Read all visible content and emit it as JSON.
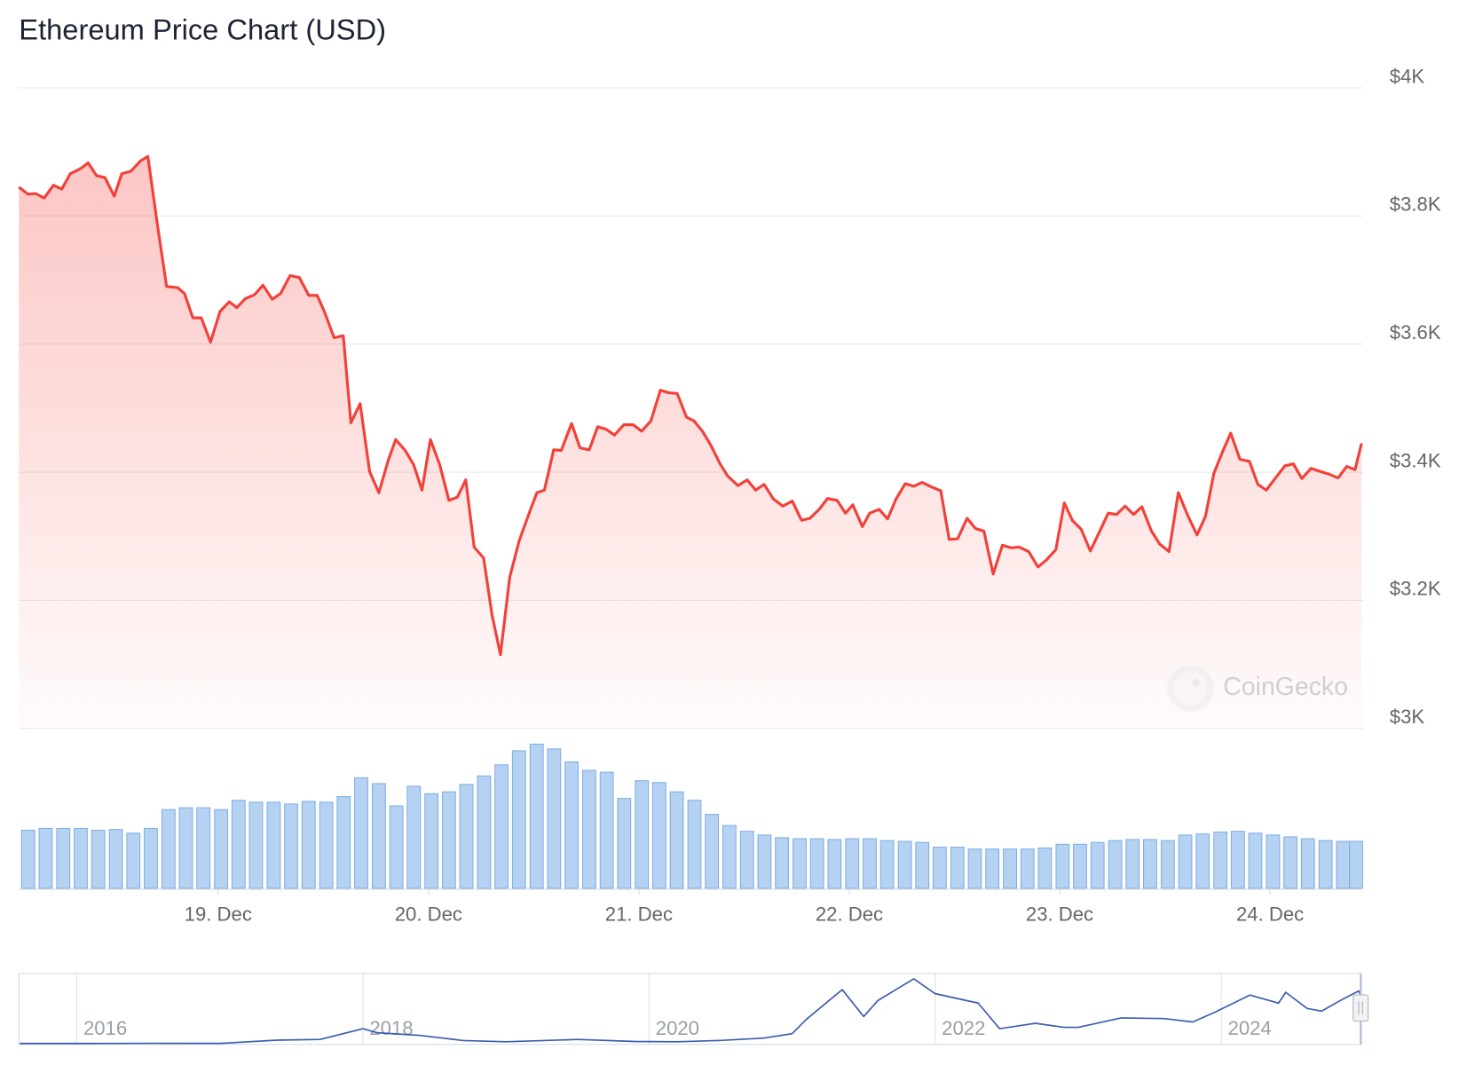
{
  "chart_data": {
    "type": "area",
    "title": "Ethereum Price Chart (USD)",
    "watermark": "CoinGecko",
    "color": "#f2413a",
    "grid": true,
    "xlim": [
      18.053,
      24.435
    ],
    "ylim": [
      3000,
      4000
    ],
    "yticks": [
      {
        "value": 3000,
        "label": "$3K"
      },
      {
        "value": 3200,
        "label": "$3.2K"
      },
      {
        "value": 3400,
        "label": "$3.4K"
      },
      {
        "value": 3600,
        "label": "$3.6K"
      },
      {
        "value": 3800,
        "label": "$3.8K"
      },
      {
        "value": 4000,
        "label": "$4K"
      }
    ],
    "xticks": [
      {
        "value": 19,
        "label": "19. Dec"
      },
      {
        "value": 20,
        "label": "20. Dec"
      },
      {
        "value": 21,
        "label": "21. Dec"
      },
      {
        "value": 22,
        "label": "22. Dec"
      },
      {
        "value": 23,
        "label": "23. Dec"
      },
      {
        "value": 24,
        "label": "24. Dec"
      }
    ],
    "x": [
      18.053,
      18.097,
      18.133,
      18.173,
      18.217,
      18.257,
      18.297,
      18.346,
      18.382,
      18.422,
      18.462,
      18.506,
      18.542,
      18.586,
      18.631,
      18.666,
      18.711,
      18.755,
      18.808,
      18.84,
      18.88,
      18.92,
      18.964,
      19.009,
      19.053,
      19.089,
      19.129,
      19.173,
      19.213,
      19.257,
      19.297,
      19.342,
      19.386,
      19.431,
      19.471,
      19.506,
      19.551,
      19.595,
      19.631,
      19.675,
      19.72,
      19.764,
      19.809,
      19.844,
      19.889,
      19.929,
      19.969,
      20.009,
      20.053,
      20.097,
      20.137,
      20.177,
      20.217,
      20.262,
      20.302,
      20.342,
      20.386,
      20.431,
      20.475,
      20.515,
      20.551,
      20.595,
      20.631,
      20.68,
      20.72,
      20.764,
      20.804,
      20.844,
      20.884,
      20.928,
      20.973,
      21.013,
      21.057,
      21.102,
      21.142,
      21.182,
      21.226,
      21.262,
      21.302,
      21.342,
      21.386,
      21.422,
      21.471,
      21.515,
      21.555,
      21.595,
      21.64,
      21.684,
      21.729,
      21.773,
      21.813,
      21.857,
      21.897,
      21.942,
      21.982,
      22.017,
      22.062,
      22.097,
      22.142,
      22.182,
      22.222,
      22.266,
      22.306,
      22.346,
      22.391,
      22.435,
      22.475,
      22.515,
      22.56,
      22.6,
      22.64,
      22.684,
      22.728,
      22.768,
      22.808,
      22.853,
      22.897,
      22.937,
      22.982,
      23.022,
      23.062,
      23.102,
      23.146,
      23.182,
      23.231,
      23.271,
      23.311,
      23.351,
      23.391,
      23.435,
      23.475,
      23.52,
      23.564,
      23.608,
      23.653,
      23.693,
      23.733,
      23.773,
      23.813,
      23.857,
      23.902,
      23.942,
      23.982,
      24.026,
      24.071,
      24.111,
      24.151,
      24.195,
      24.24,
      24.28,
      24.324,
      24.364,
      24.404,
      24.435
    ],
    "values": [
      3845,
      3834,
      3835,
      3828,
      3848,
      3842,
      3866,
      3874,
      3883,
      3863,
      3860,
      3831,
      3866,
      3870,
      3886,
      3893,
      3787,
      3690,
      3688,
      3679,
      3641,
      3641,
      3603,
      3651,
      3666,
      3657,
      3671,
      3677,
      3692,
      3670,
      3679,
      3707,
      3704,
      3676,
      3676,
      3650,
      3610,
      3613,
      3477,
      3507,
      3401,
      3368,
      3419,
      3451,
      3434,
      3412,
      3372,
      3451,
      3412,
      3356,
      3361,
      3388,
      3283,
      3266,
      3177,
      3115,
      3236,
      3293,
      3333,
      3368,
      3372,
      3435,
      3434,
      3476,
      3438,
      3435,
      3471,
      3467,
      3458,
      3474,
      3474,
      3464,
      3480,
      3528,
      3524,
      3523,
      3486,
      3480,
      3464,
      3442,
      3413,
      3394,
      3379,
      3388,
      3372,
      3381,
      3358,
      3347,
      3355,
      3325,
      3328,
      3342,
      3359,
      3356,
      3336,
      3349,
      3315,
      3336,
      3342,
      3327,
      3358,
      3382,
      3378,
      3384,
      3377,
      3371,
      3295,
      3296,
      3328,
      3312,
      3308,
      3241,
      3286,
      3282,
      3283,
      3276,
      3252,
      3263,
      3279,
      3352,
      3324,
      3311,
      3277,
      3302,
      3336,
      3334,
      3347,
      3334,
      3346,
      3309,
      3288,
      3276,
      3368,
      3333,
      3302,
      3331,
      3398,
      3431,
      3461,
      3420,
      3417,
      3381,
      3372,
      3391,
      3410,
      3413,
      3390,
      3406,
      3401,
      3397,
      3391,
      3409,
      3404,
      3445
    ],
    "volume": {
      "color": "#b5d2f3",
      "ylim": [
        0,
        60
      ],
      "x": [
        18.097,
        18.18,
        18.264,
        18.347,
        18.43,
        18.514,
        18.597,
        18.68,
        18.764,
        18.847,
        18.93,
        19.014,
        19.097,
        19.18,
        19.264,
        19.347,
        19.43,
        19.514,
        19.597,
        19.68,
        19.764,
        19.847,
        19.93,
        20.014,
        20.097,
        20.18,
        20.264,
        20.347,
        20.43,
        20.514,
        20.597,
        20.68,
        20.764,
        20.847,
        20.93,
        21.014,
        21.097,
        21.18,
        21.264,
        21.347,
        21.43,
        21.514,
        21.597,
        21.68,
        21.764,
        21.847,
        21.93,
        22.014,
        22.097,
        22.18,
        22.264,
        22.347,
        22.43,
        22.514,
        22.597,
        22.68,
        22.764,
        22.847,
        22.93,
        23.014,
        23.097,
        23.18,
        23.264,
        23.347,
        23.43,
        23.514,
        23.597,
        23.68,
        23.764,
        23.847,
        23.93,
        24.014,
        24.097,
        24.18,
        24.264,
        24.347,
        24.409
      ],
      "values": [
        21.9,
        22.6,
        22.6,
        22.6,
        21.9,
        22.2,
        20.8,
        22.6,
        29.7,
        30.4,
        30.4,
        29.7,
        33.2,
        32.5,
        32.5,
        31.8,
        32.8,
        32.5,
        34.6,
        41.7,
        39.5,
        31.1,
        38.5,
        35.7,
        36.4,
        39.2,
        42.4,
        46.6,
        51.9,
        54.4,
        52.6,
        47.7,
        44.5,
        43.8,
        33.9,
        40.6,
        39.9,
        36.4,
        33.2,
        27.9,
        23.7,
        21.5,
        20.1,
        19.1,
        18.7,
        18.7,
        18.4,
        18.7,
        18.7,
        18.0,
        17.7,
        17.3,
        15.5,
        15.5,
        14.8,
        14.8,
        14.8,
        14.8,
        15.2,
        16.6,
        16.6,
        17.3,
        18.0,
        18.4,
        18.4,
        18.0,
        20.1,
        20.5,
        21.2,
        21.5,
        20.8,
        20.1,
        19.4,
        18.7,
        18.0,
        17.7,
        17.7
      ]
    },
    "navigator": {
      "color": "#3b5cb0",
      "xlim": [
        2015.595,
        2024.98
      ],
      "ylim": [
        0,
        5000
      ],
      "xticks": [
        2016,
        2018,
        2020,
        2022,
        2024
      ],
      "x": [
        2015.6,
        2016.0,
        2016.5,
        2017.0,
        2017.4,
        2017.7,
        2018.0,
        2018.1,
        2018.4,
        2018.7,
        2019.0,
        2019.5,
        2019.9,
        2020.2,
        2020.5,
        2020.8,
        2021.0,
        2021.1,
        2021.35,
        2021.5,
        2021.6,
        2021.85,
        2022.0,
        2022.3,
        2022.45,
        2022.7,
        2022.9,
        2023.0,
        2023.3,
        2023.6,
        2023.8,
        2023.95,
        2024.2,
        2024.4,
        2024.45,
        2024.6,
        2024.7,
        2024.85,
        2024.96,
        2024.98
      ],
      "values": [
        1,
        1,
        12,
        8,
        250,
        300,
        1100,
        800,
        600,
        220,
        130,
        300,
        150,
        130,
        230,
        400,
        730,
        1800,
        4000,
        2000,
        3200,
        4800,
        3700,
        3000,
        1100,
        1500,
        1200,
        1200,
        1900,
        1850,
        1600,
        2300,
        3600,
        3000,
        3800,
        2600,
        2400,
        3300,
        3900,
        3400
      ]
    }
  }
}
